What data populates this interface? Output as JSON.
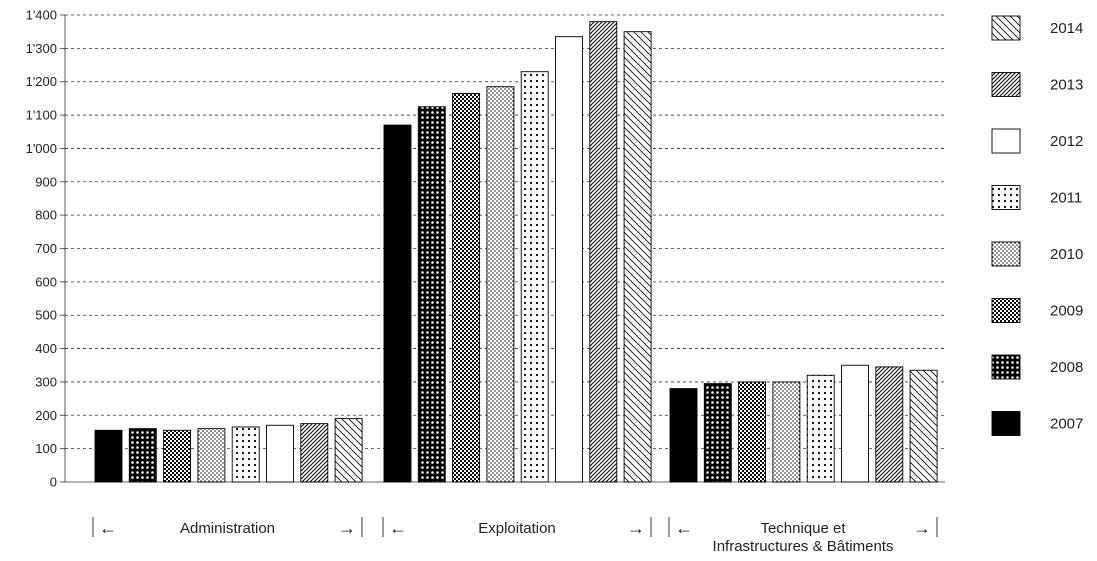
{
  "chart_data": {
    "type": "bar",
    "title": "",
    "xlabel": "",
    "ylabel": "",
    "ylim": [
      0,
      1400
    ],
    "yticks": [
      0,
      100,
      200,
      300,
      400,
      500,
      600,
      700,
      800,
      900,
      1000,
      1100,
      1200,
      1300,
      1400
    ],
    "ytick_labels": [
      "0",
      "100",
      "200",
      "300",
      "400",
      "500",
      "600",
      "700",
      "800",
      "900",
      "1'000",
      "1'100",
      "1'200",
      "1'300",
      "1'400"
    ],
    "grid": true,
    "legend_position": "right",
    "categories": [
      {
        "lines": [
          "Administration"
        ]
      },
      {
        "lines": [
          "Exploitation"
        ]
      },
      {
        "lines": [
          "Technique et",
          "Infrastructures & Bâtiments"
        ]
      }
    ],
    "series": [
      {
        "name": "2007",
        "pattern": "solid-black",
        "values": [
          155,
          1070,
          280
        ]
      },
      {
        "name": "2008",
        "pattern": "dense-white-dots",
        "values": [
          160,
          1125,
          295
        ]
      },
      {
        "name": "2009",
        "pattern": "checker",
        "values": [
          155,
          1165,
          300
        ]
      },
      {
        "name": "2010",
        "pattern": "fine-dots",
        "values": [
          160,
          1185,
          300
        ]
      },
      {
        "name": "2011",
        "pattern": "sparse-dots",
        "values": [
          165,
          1230,
          320
        ]
      },
      {
        "name": "2012",
        "pattern": "white",
        "values": [
          170,
          1335,
          350
        ]
      },
      {
        "name": "2013",
        "pattern": "dense-diagonal",
        "values": [
          175,
          1380,
          345
        ]
      },
      {
        "name": "2014",
        "pattern": "sparse-diagonal",
        "values": [
          190,
          1350,
          335
        ]
      }
    ],
    "legend_order": [
      "2014",
      "2013",
      "2012",
      "2011",
      "2010",
      "2009",
      "2008",
      "2007"
    ],
    "arrows": {
      "left": "←",
      "right": "→"
    }
  }
}
